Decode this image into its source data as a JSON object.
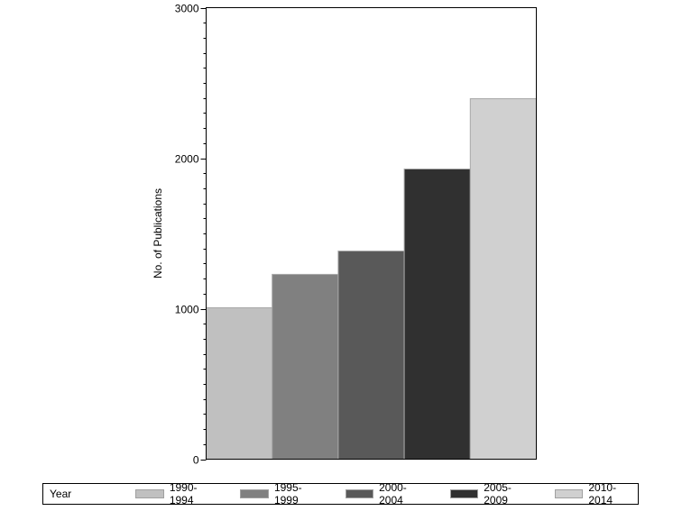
{
  "chart_data": {
    "type": "bar",
    "title": "",
    "xlabel": "",
    "ylabel": "No. of Publications",
    "ylim": [
      0,
      3000
    ],
    "yticks": [
      0,
      1000,
      2000,
      3000
    ],
    "minor_tick_step": 100,
    "grid": false,
    "legend_position": "bottom",
    "legend_title": "Year",
    "categories": [
      "1990-1994",
      "1995-1999",
      "2000-2004",
      "2005-2009",
      "2010-2014"
    ],
    "values": [
      1006,
      1228,
      1383,
      1928,
      2395
    ],
    "colors": [
      "#c0c0c0",
      "#808080",
      "#595959",
      "#303030",
      "#d0d0d0"
    ]
  },
  "legend": {
    "title": "Year",
    "items": [
      {
        "label": "1990-1994",
        "color": "#c0c0c0"
      },
      {
        "label": "1995-1999",
        "color": "#808080"
      },
      {
        "label": "2000-2004",
        "color": "#595959"
      },
      {
        "label": "2005-2009",
        "color": "#303030"
      },
      {
        "label": "2010-2014",
        "color": "#d0d0d0"
      }
    ]
  }
}
